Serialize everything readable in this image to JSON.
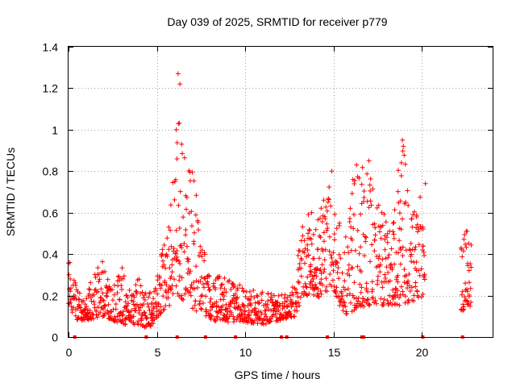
{
  "chart_data": {
    "type": "scatter",
    "title": "Day 039 of 2025, SRMTID for receiver p779",
    "xlabel": "GPS time / hours",
    "ylabel": "SRMTID / TECUs",
    "xlim": [
      0,
      24
    ],
    "ylim": [
      0,
      1.4
    ],
    "xticks": [
      0,
      5,
      10,
      15,
      20
    ],
    "xtick_labels": [
      "0",
      "5",
      "10",
      "15",
      "20"
    ],
    "yticks": [
      0,
      0.2,
      0.4,
      0.6,
      0.8,
      1,
      1.2,
      1.4
    ],
    "ytick_labels": [
      "0",
      "0.2",
      "0.4",
      "0.6",
      "0.8",
      "1",
      "1.2",
      "1.4"
    ],
    "grid": true,
    "marker": "+",
    "color": "#ff0000",
    "series": [
      {
        "name": "SRMTID",
        "envelope": [
          {
            "x": 0.0,
            "lo": 0.15,
            "hi": 0.44
          },
          {
            "x": 0.5,
            "lo": 0.08,
            "hi": 0.22
          },
          {
            "x": 1.0,
            "lo": 0.08,
            "hi": 0.2
          },
          {
            "x": 1.5,
            "lo": 0.09,
            "hi": 0.32
          },
          {
            "x": 2.0,
            "lo": 0.1,
            "hi": 0.37
          },
          {
            "x": 2.5,
            "lo": 0.08,
            "hi": 0.24
          },
          {
            "x": 3.0,
            "lo": 0.06,
            "hi": 0.36
          },
          {
            "x": 3.5,
            "lo": 0.06,
            "hi": 0.22
          },
          {
            "x": 4.0,
            "lo": 0.06,
            "hi": 0.29
          },
          {
            "x": 4.5,
            "lo": 0.04,
            "hi": 0.2
          },
          {
            "x": 5.0,
            "lo": 0.08,
            "hi": 0.3
          },
          {
            "x": 5.5,
            "lo": 0.13,
            "hi": 0.5
          },
          {
            "x": 6.0,
            "lo": 0.18,
            "hi": 0.83
          },
          {
            "x": 6.3,
            "lo": 0.2,
            "hi": 1.27
          },
          {
            "x": 6.7,
            "lo": 0.15,
            "hi": 0.9
          },
          {
            "x": 7.2,
            "lo": 0.12,
            "hi": 0.74
          },
          {
            "x": 7.6,
            "lo": 0.12,
            "hi": 0.46
          },
          {
            "x": 8.0,
            "lo": 0.08,
            "hi": 0.32
          },
          {
            "x": 9.0,
            "lo": 0.07,
            "hi": 0.28
          },
          {
            "x": 10.0,
            "lo": 0.07,
            "hi": 0.24
          },
          {
            "x": 11.0,
            "lo": 0.06,
            "hi": 0.22
          },
          {
            "x": 12.0,
            "lo": 0.08,
            "hi": 0.2
          },
          {
            "x": 12.8,
            "lo": 0.1,
            "hi": 0.25
          },
          {
            "x": 13.3,
            "lo": 0.2,
            "hi": 0.6
          },
          {
            "x": 14.0,
            "lo": 0.18,
            "hi": 0.6
          },
          {
            "x": 14.6,
            "lo": 0.2,
            "hi": 0.72
          },
          {
            "x": 15.0,
            "lo": 0.22,
            "hi": 0.8
          },
          {
            "x": 15.6,
            "lo": 0.1,
            "hi": 0.45
          },
          {
            "x": 16.2,
            "lo": 0.12,
            "hi": 0.83
          },
          {
            "x": 16.8,
            "lo": 0.15,
            "hi": 0.85
          },
          {
            "x": 17.5,
            "lo": 0.15,
            "hi": 0.65
          },
          {
            "x": 18.2,
            "lo": 0.15,
            "hi": 0.55
          },
          {
            "x": 18.9,
            "lo": 0.15,
            "hi": 0.95
          },
          {
            "x": 19.5,
            "lo": 0.15,
            "hi": 0.6
          },
          {
            "x": 20.1,
            "lo": 0.2,
            "hi": 0.74
          },
          {
            "x": 22.3,
            "lo": 0.12,
            "hi": 0.58
          },
          {
            "x": 22.8,
            "lo": 0.15,
            "hi": 0.45
          }
        ],
        "gaps_hours": [
          [
            20.2,
            22.2
          ]
        ],
        "peaks": [
          {
            "x": 6.2,
            "y": 1.27
          },
          {
            "x": 6.3,
            "y": 1.22
          },
          {
            "x": 6.1,
            "y": 1.0
          },
          {
            "x": 6.4,
            "y": 0.93
          },
          {
            "x": 14.9,
            "y": 0.8
          },
          {
            "x": 16.3,
            "y": 0.83
          },
          {
            "x": 17.0,
            "y": 0.85
          },
          {
            "x": 18.9,
            "y": 0.95
          },
          {
            "x": 18.95,
            "y": 0.92
          },
          {
            "x": 20.2,
            "y": 0.74
          }
        ]
      }
    ],
    "baseline_markers_x": [
      0.35,
      4.4,
      6.15,
      7.75,
      9.45,
      12.05,
      12.35,
      14.65,
      16.6,
      16.7,
      20.05,
      22.3
    ]
  }
}
